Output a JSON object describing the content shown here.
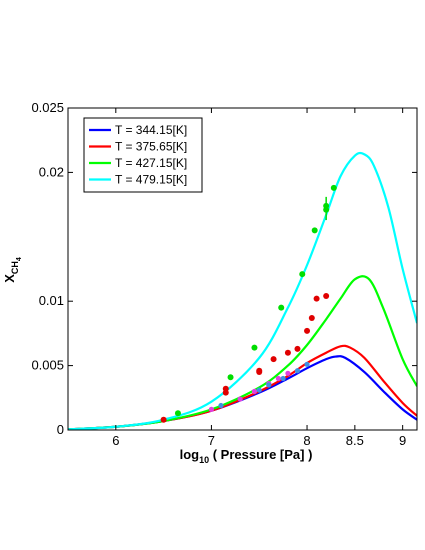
{
  "chart_data": {
    "type": "line",
    "title": "",
    "xlabel": "log10 ( Pressure [Pa] )",
    "xlabel_parts": {
      "pre": "log",
      "sub": "10",
      "post": " ( Pressure [Pa] )"
    },
    "ylabel": "XCH4",
    "ylabel_parts": {
      "main": "X",
      "sub": "CH",
      "subsub": "4"
    },
    "xlim": [
      5.5,
      9.15
    ],
    "ylim": [
      0,
      0.025
    ],
    "x_ticks": [
      6,
      7,
      8,
      8.5,
      9
    ],
    "x_tick_labels": [
      "6",
      "7",
      "8",
      "8.5",
      "9"
    ],
    "y_ticks": [
      0,
      0.005,
      0.01,
      0.02,
      0.025
    ],
    "y_tick_labels": [
      "0",
      "0.005",
      "0.01",
      "0.02",
      "0.025"
    ],
    "grid": false,
    "legend_position": "top-left",
    "series": [
      {
        "name": "T = 344.15[K]",
        "color": "#0000ff",
        "line_x": [
          5.5,
          6.0,
          6.5,
          7.0,
          7.5,
          7.8,
          8.0,
          8.2,
          8.3,
          8.4,
          8.6,
          8.8,
          9.0,
          9.15
        ],
        "line_y": [
          5e-05,
          0.00025,
          0.0007,
          0.0015,
          0.0029,
          0.004,
          0.0048,
          0.0055,
          0.0057,
          0.0056,
          0.0045,
          0.003,
          0.0016,
          0.0008
        ],
        "points_x": [],
        "points_y": []
      },
      {
        "name": "T = 375.65[K]",
        "color": "#ff0000",
        "line_x": [
          5.5,
          6.0,
          6.5,
          7.0,
          7.5,
          7.8,
          8.0,
          8.2,
          8.35,
          8.45,
          8.6,
          8.8,
          9.0,
          9.15
        ],
        "line_y": [
          5e-05,
          0.00025,
          0.0007,
          0.0015,
          0.003,
          0.0042,
          0.0052,
          0.006,
          0.0065,
          0.0064,
          0.0056,
          0.0038,
          0.0021,
          0.0011
        ],
        "points_x": [
          6.5,
          7.15,
          7.15,
          7.5,
          7.5,
          7.65,
          7.8,
          7.9,
          8.0,
          8.05,
          8.1,
          8.2
        ],
        "points_y": [
          0.0008,
          0.0029,
          0.0032,
          0.0045,
          0.0046,
          0.0055,
          0.006,
          0.0063,
          0.0077,
          0.0087,
          0.0102,
          0.0104
        ],
        "points_color": "#e00000"
      },
      {
        "name": "T = 427.15[K]",
        "color": "#00ff00",
        "line_x": [
          5.5,
          6.0,
          6.5,
          7.0,
          7.5,
          7.8,
          8.0,
          8.2,
          8.35,
          8.5,
          8.65,
          8.8,
          9.0,
          9.15
        ],
        "line_y": [
          5e-05,
          0.00025,
          0.0007,
          0.0016,
          0.0033,
          0.005,
          0.0066,
          0.0086,
          0.0102,
          0.0117,
          0.0117,
          0.0094,
          0.0055,
          0.0034
        ],
        "points_x": [
          6.65,
          7.2,
          7.45,
          7.73,
          7.95,
          8.08,
          8.2,
          8.28
        ],
        "points_y": [
          0.0013,
          0.0041,
          0.0064,
          0.0095,
          0.0121,
          0.0155,
          0.0174,
          0.0188
        ],
        "points_color": "#00dd00"
      },
      {
        "name": "T = 479.15[K]",
        "color": "#00ffff",
        "line_x": [
          5.5,
          6.0,
          6.5,
          7.0,
          7.5,
          7.8,
          8.0,
          8.2,
          8.35,
          8.5,
          8.6,
          8.7,
          8.85,
          9.0,
          9.15
        ],
        "line_y": [
          5e-05,
          0.00025,
          0.0008,
          0.0022,
          0.0056,
          0.0095,
          0.0128,
          0.0167,
          0.0197,
          0.0213,
          0.0214,
          0.0205,
          0.0173,
          0.0125,
          0.0083
        ],
        "points_x": [],
        "points_y": []
      }
    ],
    "overlay_points": {
      "color": "#e040e0",
      "x": [
        7.0,
        7.3,
        7.45,
        7.6,
        7.7,
        7.8
      ],
      "y": [
        0.0016,
        0.0024,
        0.003,
        0.0036,
        0.004,
        0.0044
      ]
    },
    "overlay_points_blue": {
      "color": "#3f8fe0",
      "x": [
        7.1,
        7.5,
        7.6,
        7.75,
        7.9,
        8.0
      ],
      "y": [
        0.0019,
        0.0031,
        0.0035,
        0.004,
        0.0046,
        0.0051
      ]
    },
    "error_bar": {
      "x": 8.2,
      "y": 0.0171,
      "low": 0.0163,
      "high": 0.0181,
      "color": "#00dd00"
    }
  }
}
